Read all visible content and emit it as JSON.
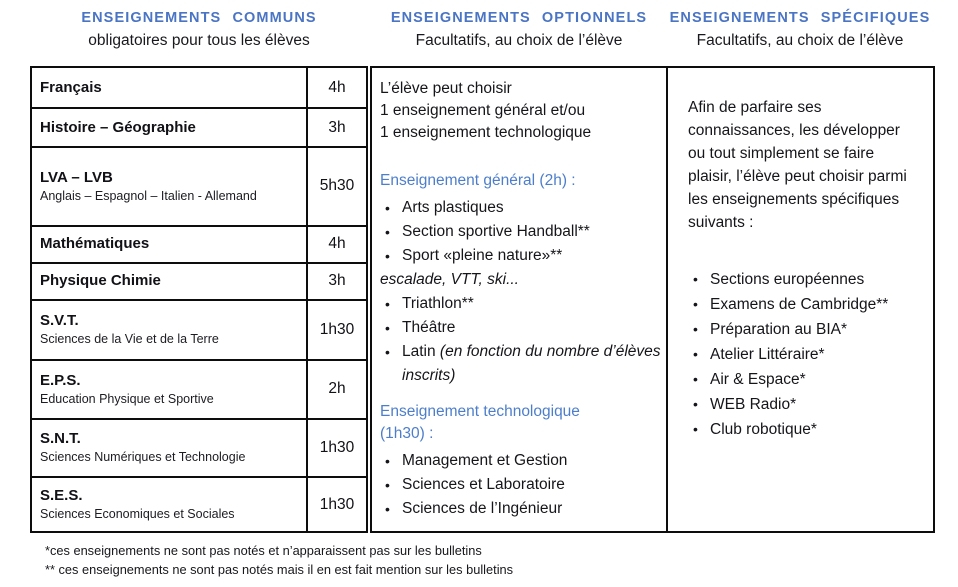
{
  "colors": {
    "heading_blue": "#4a74c4",
    "subhead_blue": "#4d7ecb",
    "text": "#15151a",
    "border": "#0d0d0d"
  },
  "headers": [
    {
      "title": "ENSEIGNEMENTS COMMUNS",
      "subtitle": "obligatoires pour tous les élèves"
    },
    {
      "title": "ENSEIGNEMENTS OPTIONNELS",
      "subtitle": "Facultatifs, au choix de l’élève"
    },
    {
      "title": "ENSEIGNEMENTS SPÉCIFIQUES",
      "subtitle": "Facultatifs, au choix de l’élève"
    }
  ],
  "common_table": {
    "rows": [
      {
        "subject": "Français",
        "detail": "",
        "hours": "4h"
      },
      {
        "subject": "Histoire – Géographie",
        "detail": "",
        "hours": "3h"
      },
      {
        "subject": "LVA – LVB",
        "detail": "Anglais – Espagnol – Italien - Allemand",
        "hours": "5h30"
      },
      {
        "subject": "Mathématiques",
        "detail": "",
        "hours": "4h"
      },
      {
        "subject": "Physique Chimie",
        "detail": "",
        "hours": "3h"
      },
      {
        "subject": "S.V.T.",
        "detail": "Sciences de la Vie et de la Terre",
        "hours": "1h30"
      },
      {
        "subject": "E.P.S.",
        "detail": "Education Physique et Sportive",
        "hours": "2h"
      },
      {
        "subject": "S.N.T.",
        "detail": "Sciences Numériques et Technologie",
        "hours": "1h30"
      },
      {
        "subject": "S.E.S.",
        "detail": "Sciences Economiques et Sociales",
        "hours": "1h30"
      }
    ]
  },
  "optional_panel": {
    "intro_lines": [
      "L’élève peut choisir",
      "1 enseignement général et/ou",
      "1 enseignement technologique"
    ],
    "general": {
      "heading": "Enseignement général (2h) :",
      "items": [
        "Arts plastiques",
        "Section sportive Handball**",
        "Sport «pleine nature»**"
      ],
      "items_note": "escalade, VTT, ski...",
      "items2": [
        "Triathlon**",
        "Théâtre"
      ],
      "latin_label": "Latin ",
      "latin_note": "(en fonction du nombre d’élèves inscrits)"
    },
    "technological": {
      "heading_lines": [
        "Enseignement technologique",
        "(1h30) :"
      ],
      "items": [
        "Management et Gestion",
        "Sciences et Laboratoire",
        "Sciences de l’Ingénieur"
      ]
    }
  },
  "specific_panel": {
    "intro": "Afin de parfaire ses connaissances, les développer ou tout simplement se faire plaisir, l’élève peut choisir parmi les enseignements spécifiques suivants :",
    "items": [
      "Sections européennes",
      "Examens de Cambridge**",
      "Préparation au BIA*",
      "Atelier Littéraire*",
      "Air & Espace*",
      "WEB Radio*",
      "Club robotique*"
    ]
  },
  "footnotes": [
    "*ces enseignements ne sont pas notés et n’apparaissent pas sur les bulletins",
    "** ces enseignements ne sont pas notés mais il en est fait mention sur les bulletins"
  ]
}
